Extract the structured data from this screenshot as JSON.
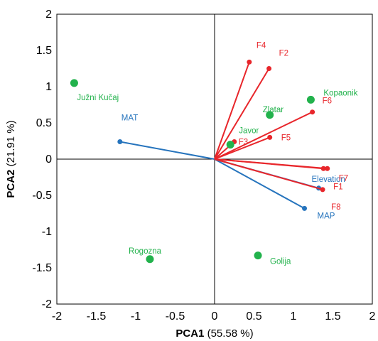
{
  "chart_data": {
    "type": "scatter",
    "xlabel_bold": "PCA1",
    "xlabel_rest": " (55.58 %)",
    "ylabel_bold": "PCA2",
    "ylabel_rest": " (21.91 %)",
    "xlim": [
      -2,
      2
    ],
    "ylim": [
      -2,
      2
    ],
    "xticks": [
      -2,
      -1.5,
      -1,
      -0.5,
      0,
      0.5,
      1,
      1.5,
      2
    ],
    "yticks": [
      -2,
      -1.5,
      -1,
      -0.5,
      0,
      0.5,
      1,
      1.5,
      2
    ],
    "xtick_labels": [
      "-2",
      "-1.5",
      "-1",
      "-0.5",
      "0",
      "0.5",
      "1",
      "1.5",
      "2"
    ],
    "ytick_labels": [
      "-2",
      "-1.5",
      "-1",
      "-0.5",
      "0",
      "0.5",
      "1",
      "1.5",
      "2"
    ],
    "grid": false,
    "colors": {
      "sites": "#22b24c",
      "fungal": "#e8262b",
      "climate": "#2674bd"
    },
    "sites": [
      {
        "label": "Južni Kučaj",
        "x": -1.78,
        "y": 1.05
      },
      {
        "label": "Kopaonik",
        "x": 1.22,
        "y": 0.82
      },
      {
        "label": "Zlatar",
        "x": 0.7,
        "y": 0.61
      },
      {
        "label": "Javor",
        "x": 0.2,
        "y": 0.2
      },
      {
        "label": "Rogozna",
        "x": -0.82,
        "y": -1.38
      },
      {
        "label": "Golija",
        "x": 0.55,
        "y": -1.33
      }
    ],
    "fungal_vectors": [
      {
        "label": "F4",
        "x": 0.44,
        "y": 1.34
      },
      {
        "label": "F2",
        "x": 0.69,
        "y": 1.25
      },
      {
        "label": "F6",
        "x": 1.24,
        "y": 0.65
      },
      {
        "label": "F3",
        "x": 0.25,
        "y": 0.24
      },
      {
        "label": "F5",
        "x": 0.7,
        "y": 0.3
      },
      {
        "label": "F7",
        "x": 1.43,
        "y": -0.13
      },
      {
        "label": "F1",
        "x": 1.38,
        "y": -0.13
      },
      {
        "label": "F8",
        "x": 1.37,
        "y": -0.42
      }
    ],
    "climate_vectors": [
      {
        "label": "MAT",
        "x": -1.2,
        "y": 0.24
      },
      {
        "label": "Elevation",
        "x": 1.32,
        "y": -0.4
      },
      {
        "label": "MAP",
        "x": 1.14,
        "y": -0.68
      }
    ]
  }
}
